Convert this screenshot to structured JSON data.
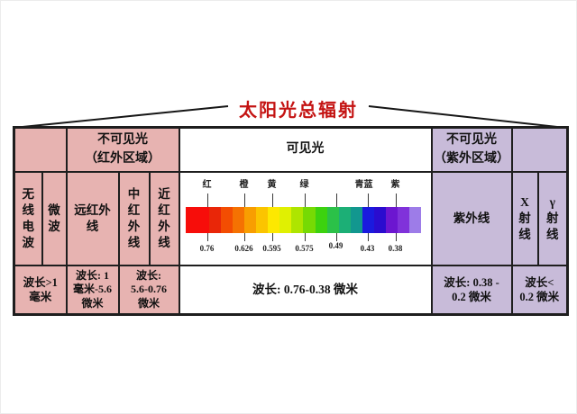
{
  "title": "太阳光总辐射",
  "colors": {
    "infrared_bg": "#e7b3b1",
    "ultraviolet_bg": "#c8bbd9",
    "title_red": "#c41312",
    "border": "#1e1e1e"
  },
  "header": {
    "infrared_region": "不可见光\n（红外区域）",
    "visible": "可见光",
    "ultraviolet_region": "不可见光\n（紫外区域）"
  },
  "bands": {
    "radio": "无\n线\n电\n波",
    "microwave": "微\n波",
    "far_infrared": "远红外\n线",
    "mid_infrared": "中\n红\n外\n线",
    "near_infrared": "近\n红\n外\n线",
    "ultraviolet": "紫外线",
    "xray": "X\n射\n线",
    "gamma": "γ\n射\n线"
  },
  "wavelengths": {
    "radio_microwave": "波长>1\n毫米",
    "far_infrared": "波长: 1\n毫米-5.6\n微米",
    "mid_near_infrared": "波长:\n5.6-0.76\n微米",
    "visible": "波长: 0.76-0.38 微米",
    "ultraviolet": "波长: 0.38 -\n0.2 微米",
    "xray_gamma": "波长<\n0.2 微米"
  },
  "spectrum": {
    "unit": "微米",
    "labels": [
      "红",
      "橙",
      "黄",
      "绿",
      "青蓝",
      "紫"
    ],
    "values": [
      "0.76",
      "0.626",
      "0.595",
      "0.575",
      "0.49",
      "0.43",
      "0.38"
    ],
    "bar_colors": [
      "#f70d0a",
      "#f70d0a",
      "#e92608",
      "#f34d02",
      "#f57202",
      "#f89e01",
      "#fbc400",
      "#fde801",
      "#e0f002",
      "#aee500",
      "#76da04",
      "#3cd20f",
      "#2bc148",
      "#1caf76",
      "#12978f",
      "#1a1ade",
      "#2a0ccf",
      "#6c16d0",
      "#8032da",
      "#9d7ce8"
    ]
  }
}
